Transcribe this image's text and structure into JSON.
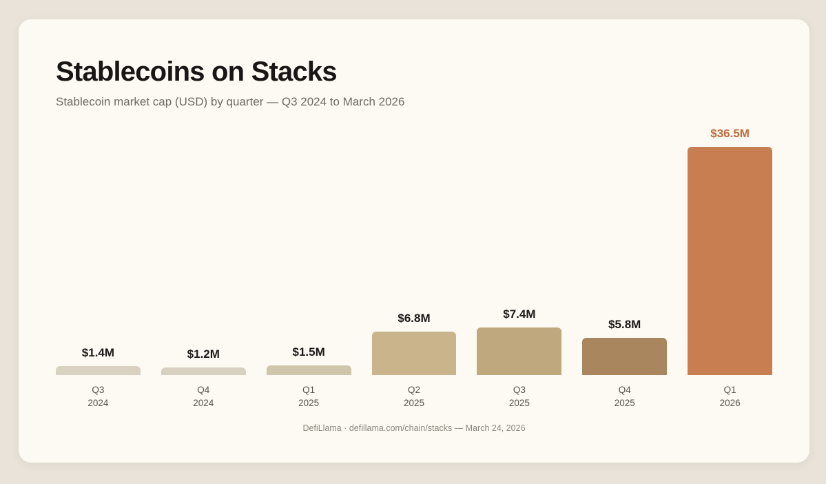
{
  "page": {
    "background": "#e9e3d9",
    "card_background": "#fcfaf3"
  },
  "header": {
    "title": "Stablecoins on Stacks",
    "subtitle": "Stablecoin market cap (USD) by quarter — Q3 2024 to March 2026"
  },
  "footer": {
    "text": "DefiLlama · defillama.com/chain/stacks — March 24, 2026"
  },
  "chart_data": {
    "type": "bar",
    "title": "Stablecoins on Stacks",
    "subtitle": "Stablecoin market cap (USD) by quarter — Q3 2024 to March 2026",
    "unit": "USD millions",
    "categories": [
      "Q3 2024",
      "Q4 2024",
      "Q1 2025",
      "Q2 2025",
      "Q3 2025",
      "Q4 2025",
      "Q1 2026"
    ],
    "values": [
      1.4,
      1.2,
      1.5,
      6.8,
      7.4,
      5.8,
      36.5
    ],
    "value_labels": [
      "$1.4M",
      "$1.2M",
      "$1.5M",
      "$6.8M",
      "$7.4M",
      "$5.8M",
      "$36.5M"
    ],
    "bar_colors": [
      "#d9d2c1",
      "#d8d1c0",
      "#d0c6ab",
      "#c9b48c",
      "#c0a87e",
      "#aa865e",
      "#c97e52"
    ],
    "label_colors": [
      "#1b1a18",
      "#1b1a18",
      "#1b1a18",
      "#1b1a18",
      "#1b1a18",
      "#1b1a18",
      "#c06a3c"
    ],
    "highlight_index": 6,
    "ylim": [
      0,
      36.5
    ],
    "grid": false,
    "legend": false,
    "xlabel": "",
    "ylabel": ""
  }
}
